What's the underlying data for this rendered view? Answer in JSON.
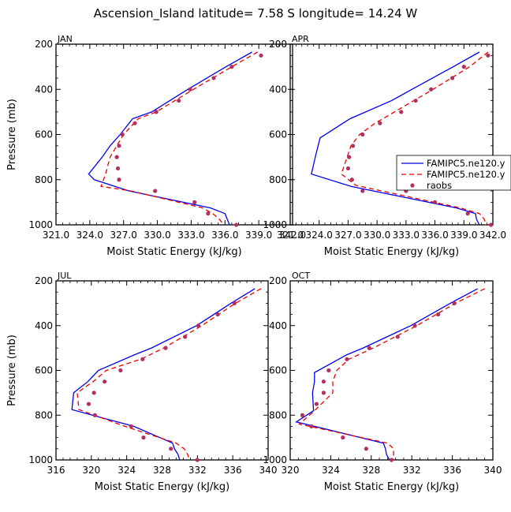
{
  "title": "Ascension_Island   latitude= 7.58 S longitude= 14.24 W",
  "colors": {
    "model1": "#0000ee",
    "model2": "#ee0000",
    "obs": "#b03060"
  },
  "legend": {
    "panel": 1,
    "entries": [
      "FAMIPC5.ne120.y",
      "FAMIPC5.ne120.y",
      "raobs"
    ]
  },
  "chart_data": [
    {
      "type": "line",
      "label": "JAN",
      "xlabel": "Moist Static Energy (kJ/kg)",
      "ylabel": "Pressure (mb)",
      "xlim": [
        321.0,
        342.0
      ],
      "ylim": [
        1000,
        200
      ],
      "xticks": [
        "321.0",
        "324.0",
        "327.0",
        "330.0",
        "333.0",
        "336.0",
        "339.0",
        "342.0"
      ],
      "yticks": [
        "200",
        "400",
        "600",
        "800",
        "1000"
      ],
      "series": [
        {
          "y": [
            235,
            300,
            400,
            500,
            530,
            600,
            650,
            700,
            775,
            800,
            850,
            925,
            950,
            975,
            1000
          ],
          "x": [
            338.4,
            336.1,
            332.7,
            329.5,
            327.8,
            326.7,
            325.8,
            325.1,
            323.9,
            324.4,
            327.5,
            334.7,
            336.0,
            336.2,
            336.4
          ]
        },
        {
          "y": [
            235,
            300,
            400,
            500,
            530,
            600,
            650,
            700,
            775,
            830,
            850,
            925,
            950,
            975,
            1000
          ],
          "x": [
            338.9,
            336.6,
            333.2,
            329.9,
            328.3,
            327.0,
            326.4,
            325.8,
            325.4,
            325.0,
            327.7,
            334.0,
            334.9,
            335.5,
            335.9
          ]
        }
      ],
      "points": {
        "x": [
          339.2,
          336.6,
          335.0,
          332.9,
          331.9,
          329.9,
          328.0,
          326.9,
          326.6,
          326.4,
          326.5,
          326.6,
          329.8,
          333.3,
          334.5,
          337.0
        ],
        "y": [
          250,
          300,
          350,
          400,
          450,
          500,
          550,
          600,
          650,
          700,
          750,
          800,
          850,
          900,
          950,
          1000
        ]
      }
    },
    {
      "type": "line",
      "label": "APR",
      "xlabel": "Moist Static Energy (kJ/kg)",
      "ylabel": "Pressure (mb)",
      "xlim": [
        321.0,
        342.0
      ],
      "ylim": [
        1000,
        200
      ],
      "xticks": [
        "321.0",
        "324.0",
        "327.0",
        "330.0",
        "333.0",
        "336.0",
        "339.0",
        "342.0"
      ],
      "yticks": [
        "200",
        "400",
        "600",
        "800",
        "1000"
      ],
      "series": [
        {
          "y": [
            235,
            300,
            400,
            450,
            530,
            615,
            700,
            775,
            830,
            925,
            950,
            975,
            1000
          ],
          "x": [
            340.6,
            337.9,
            333.6,
            331.5,
            327.2,
            324.1,
            323.6,
            323.2,
            327.3,
            338.2,
            340.2,
            340.3,
            340.6
          ]
        },
        {
          "y": [
            235,
            300,
            400,
            500,
            550,
            600,
            650,
            700,
            775,
            825,
            850,
            925,
            950,
            975,
            1000
          ],
          "x": [
            341.5,
            339.6,
            335.8,
            331.8,
            329.8,
            328.2,
            327.3,
            326.9,
            326.3,
            327.8,
            330.5,
            338.6,
            340.6,
            341.1,
            341.3
          ]
        }
      ],
      "points": {
        "x": [
          341.5,
          339.0,
          337.8,
          335.6,
          334.0,
          332.5,
          330.3,
          328.5,
          327.5,
          327.1,
          327.0,
          327.4,
          328.5,
          333.0,
          336.0,
          339.4,
          341.8
        ],
        "y": [
          250,
          300,
          350,
          400,
          450,
          500,
          550,
          600,
          650,
          700,
          750,
          800,
          850,
          850,
          900,
          950,
          1000
        ]
      }
    },
    {
      "type": "line",
      "label": "JUL",
      "xlabel": "Moist Static Energy (kJ/kg)",
      "ylabel": "Pressure (mb)",
      "xlim": [
        316,
        340
      ],
      "ylim": [
        1000,
        200
      ],
      "xticks": [
        "316",
        "320",
        "324",
        "328",
        "332",
        "336",
        "340"
      ],
      "yticks": [
        "200",
        "400",
        "600",
        "800",
        "1000"
      ],
      "series": [
        {
          "y": [
            235,
            300,
            400,
            500,
            530,
            600,
            650,
            700,
            775,
            850,
            925,
            950,
            975,
            1000
          ],
          "x": [
            338.5,
            335.8,
            331.9,
            326.8,
            324.9,
            320.8,
            319.6,
            318.0,
            317.8,
            324.8,
            329.2,
            329.4,
            329.8,
            330.0
          ]
        },
        {
          "y": [
            235,
            300,
            400,
            500,
            550,
            600,
            650,
            700,
            775,
            850,
            925,
            950,
            975,
            1000
          ],
          "x": [
            339.2,
            336.3,
            332.5,
            328.2,
            325.6,
            321.7,
            320.2,
            318.4,
            318.6,
            323.8,
            329.6,
            330.5,
            330.9,
            331.1
          ]
        }
      ],
      "points": {
        "x": [
          336.2,
          334.3,
          332.1,
          330.6,
          328.4,
          325.8,
          323.3,
          321.5,
          320.3,
          319.7,
          320.4,
          324.5,
          325.9,
          329.0,
          332.0
        ],
        "y": [
          300,
          350,
          400,
          450,
          500,
          550,
          600,
          650,
          700,
          750,
          800,
          850,
          900,
          950,
          1000
        ]
      }
    },
    {
      "type": "line",
      "label": "OCT",
      "xlabel": "Moist Static Energy (kJ/kg)",
      "ylabel": "Pressure (mb)",
      "xlim": [
        320,
        340
      ],
      "ylim": [
        1000,
        200
      ],
      "xticks": [
        "320",
        "324",
        "328",
        "332",
        "336",
        "340"
      ],
      "yticks": [
        "200",
        "400",
        "600",
        "800",
        "1000"
      ],
      "series": [
        {
          "y": [
            235,
            300,
            400,
            500,
            530,
            610,
            650,
            700,
            780,
            830,
            925,
            950,
            975,
            1000
          ],
          "x": [
            338.5,
            335.8,
            331.9,
            327.2,
            325.6,
            322.4,
            322.4,
            322.2,
            322.3,
            320.6,
            329.2,
            329.4,
            329.5,
            329.8
          ]
        },
        {
          "y": [
            235,
            300,
            400,
            500,
            550,
            600,
            650,
            700,
            780,
            840,
            925,
            950,
            975,
            1000
          ],
          "x": [
            339.2,
            336.3,
            332.5,
            328.2,
            325.8,
            324.6,
            324.2,
            324.2,
            322.4,
            320.9,
            329.6,
            330.2,
            330.2,
            330.2
          ]
        }
      ],
      "points": {
        "x": [
          336.2,
          334.6,
          332.3,
          330.6,
          327.8,
          325.6,
          323.8,
          323.3,
          323.3,
          322.6,
          321.2,
          322.1,
          325.2,
          327.5,
          330.0
        ],
        "y": [
          300,
          350,
          400,
          450,
          500,
          550,
          600,
          650,
          700,
          750,
          800,
          850,
          900,
          950,
          1000
        ]
      }
    }
  ]
}
